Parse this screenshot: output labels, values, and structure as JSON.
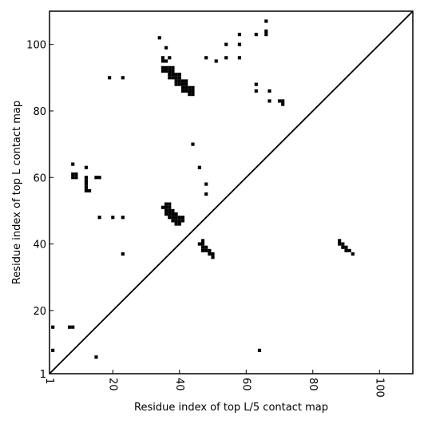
{
  "chart_data": {
    "type": "scatter",
    "title": "",
    "xlabel": "Residue index of top L/5 contact map",
    "ylabel": "Residue index of top L contact map",
    "xlim": [
      1,
      110
    ],
    "ylim": [
      1,
      110
    ],
    "x_ticks": [
      1,
      20,
      40,
      60,
      80,
      100
    ],
    "y_ticks": [
      1,
      20,
      40,
      60,
      80,
      100
    ],
    "x_tick_rotation_deg": 90,
    "grid": false,
    "legend": "none",
    "marker": "square",
    "marker_color": "#000000",
    "reference_line": {
      "from": [
        1,
        1
      ],
      "to": [
        110,
        110
      ],
      "color": "#000000"
    },
    "series": [
      {
        "name": "",
        "points": [
          [
            2,
            15
          ],
          [
            2,
            8
          ],
          [
            7,
            15
          ],
          [
            8,
            15
          ],
          [
            8,
            64
          ],
          [
            8,
            61
          ],
          [
            9,
            61
          ],
          [
            8,
            60
          ],
          [
            9,
            60
          ],
          [
            12,
            63
          ],
          [
            12,
            60
          ],
          [
            12,
            59
          ],
          [
            12,
            58
          ],
          [
            12,
            57
          ],
          [
            12,
            56
          ],
          [
            13,
            56
          ],
          [
            15,
            60
          ],
          [
            16,
            60
          ],
          [
            15,
            6
          ],
          [
            16,
            48
          ],
          [
            19,
            90
          ],
          [
            20,
            48
          ],
          [
            23,
            90
          ],
          [
            23,
            48
          ],
          [
            23,
            37
          ],
          [
            34,
            102
          ],
          [
            35,
            96
          ],
          [
            35,
            95
          ],
          [
            36,
            95
          ],
          [
            36,
            99
          ],
          [
            37,
            96
          ],
          [
            35,
            93
          ],
          [
            36,
            93
          ],
          [
            37,
            93
          ],
          [
            38,
            93
          ],
          [
            35,
            92
          ],
          [
            36,
            92
          ],
          [
            37,
            92
          ],
          [
            38,
            92
          ],
          [
            37,
            91
          ],
          [
            38,
            91
          ],
          [
            39,
            91
          ],
          [
            40,
            91
          ],
          [
            37,
            90
          ],
          [
            38,
            90
          ],
          [
            39,
            90
          ],
          [
            40,
            90
          ],
          [
            39,
            89
          ],
          [
            40,
            89
          ],
          [
            41,
            89
          ],
          [
            42,
            89
          ],
          [
            39,
            88
          ],
          [
            40,
            88
          ],
          [
            41,
            88
          ],
          [
            42,
            88
          ],
          [
            41,
            87
          ],
          [
            42,
            87
          ],
          [
            43,
            87
          ],
          [
            44,
            87
          ],
          [
            41,
            86
          ],
          [
            42,
            86
          ],
          [
            43,
            86
          ],
          [
            44,
            86
          ],
          [
            43,
            85
          ],
          [
            44,
            85
          ],
          [
            44,
            70
          ],
          [
            46,
            63
          ],
          [
            48,
            58
          ],
          [
            48,
            55
          ],
          [
            48,
            96
          ],
          [
            51,
            95
          ],
          [
            54,
            100
          ],
          [
            54,
            96
          ],
          [
            58,
            103
          ],
          [
            58,
            100
          ],
          [
            58,
            96
          ],
          [
            63,
            103
          ],
          [
            63,
            88
          ],
          [
            63,
            86
          ],
          [
            64,
            8
          ],
          [
            66,
            107
          ],
          [
            66,
            104
          ],
          [
            66,
            103
          ],
          [
            67,
            86
          ],
          [
            67,
            83
          ],
          [
            70,
            83
          ],
          [
            71,
            83
          ],
          [
            71,
            82
          ],
          [
            35,
            51
          ],
          [
            36,
            52
          ],
          [
            37,
            52
          ],
          [
            36,
            51
          ],
          [
            37,
            51
          ],
          [
            36,
            50
          ],
          [
            37,
            50
          ],
          [
            38,
            50
          ],
          [
            36,
            49
          ],
          [
            37,
            49
          ],
          [
            38,
            49
          ],
          [
            39,
            49
          ],
          [
            37,
            48
          ],
          [
            38,
            48
          ],
          [
            39,
            48
          ],
          [
            40,
            48
          ],
          [
            41,
            48
          ],
          [
            38,
            47
          ],
          [
            39,
            47
          ],
          [
            40,
            47
          ],
          [
            41,
            47
          ],
          [
            39,
            46
          ],
          [
            40,
            46
          ],
          [
            46,
            40
          ],
          [
            47,
            41
          ],
          [
            47,
            40
          ],
          [
            47,
            39
          ],
          [
            48,
            39
          ],
          [
            47,
            38
          ],
          [
            48,
            38
          ],
          [
            49,
            38
          ],
          [
            49,
            37
          ],
          [
            50,
            37
          ],
          [
            50,
            36
          ],
          [
            88,
            41
          ],
          [
            88,
            40
          ],
          [
            89,
            40
          ],
          [
            89,
            39
          ],
          [
            90,
            39
          ],
          [
            90,
            38
          ],
          [
            91,
            38
          ],
          [
            92,
            37
          ]
        ]
      }
    ]
  }
}
